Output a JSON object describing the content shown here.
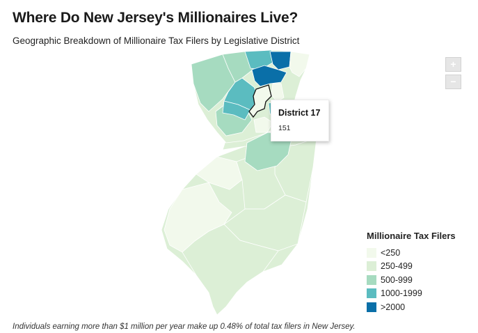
{
  "header": {
    "title": "Where Do New Jersey's Millionaires Live?",
    "subtitle": "Geographic Breakdown of Millionaire Tax Filers by Legislative District"
  },
  "zoom": {
    "in_label": "+",
    "out_label": "−"
  },
  "tooltip": {
    "district": "District 17",
    "value": "151"
  },
  "legend": {
    "title": "Millionaire Tax Filers",
    "items": [
      {
        "label": "<250",
        "color": "#f2f9ec"
      },
      {
        "label": "250-499",
        "color": "#dcefd6"
      },
      {
        "label": "500-999",
        "color": "#a6dbc0"
      },
      {
        "label": "1000-1999",
        "color": "#5bbcc0"
      },
      {
        "label": ">2000",
        "color": "#0a6fa8"
      }
    ]
  },
  "footnote": "Individuals earning more than $1 million per year make up 0.48% of total tax filers in New Jersey."
}
